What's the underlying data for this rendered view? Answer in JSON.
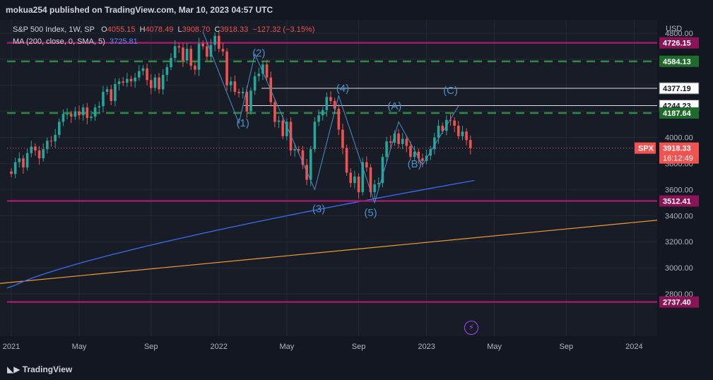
{
  "header": {
    "published": "mokua254 published on TradingView.com, Mar 10, 2023 04:57 UTC"
  },
  "legend": {
    "symbol": "S&P 500 Index, 1W, SP",
    "o_label": "O",
    "o": "4055.15",
    "h_label": "H",
    "h": "4078.49",
    "l_label": "L",
    "l": "3908.70",
    "c_label": "C",
    "c": "3918.33",
    "chg": "−127.32 (−3.15%)",
    "ma_label": "MA (200, close, 0, SMA, 5)",
    "ma_value": "3725.81"
  },
  "footer": {
    "brand": "TradingView"
  },
  "chart_data": {
    "type": "candlestick",
    "currency": "USD",
    "ylim": [
      2700,
      4880
    ],
    "y_ticks": [
      2800,
      3000,
      3200,
      3400,
      3600,
      3800,
      4000,
      4200,
      4400,
      4600,
      4800
    ],
    "y_tick_labels": [
      "2800.00",
      "3000.00",
      "3200.00",
      "3400.00",
      "3600.00",
      "3800.00",
      "4000.00",
      "4200.00",
      "4400.00",
      "4600.00",
      "4800.00"
    ],
    "x_labels": [
      "2021",
      "May",
      "Sep",
      "2022",
      "May",
      "Sep",
      "2023",
      "May",
      "Sep",
      "2024"
    ],
    "x_label_weeks": [
      0,
      17,
      35,
      52,
      69,
      87,
      104,
      121,
      139,
      156
    ],
    "closes": [
      3720,
      3810,
      3840,
      3770,
      3880,
      3930,
      3900,
      3840,
      3910,
      3975,
      3970,
      4020,
      4120,
      4180,
      4180,
      4160,
      4200,
      4170,
      4230,
      4150,
      4160,
      4230,
      4240,
      4350,
      4370,
      4280,
      4410,
      4430,
      4420,
      4450,
      4430,
      4460,
      4510,
      4530,
      4440,
      4380,
      4460,
      4370,
      4480,
      4540,
      4610,
      4700,
      4690,
      4590,
      4680,
      4550,
      4520,
      4720,
      4700,
      4620,
      4710,
      4780,
      4680,
      4660,
      4400,
      4430,
      4350,
      4340,
      4350,
      4200,
      4360,
      4470,
      4490,
      4560,
      4460,
      4270,
      4120,
      4130,
      4010,
      4120,
      3900,
      3910,
      3900,
      3790,
      3675,
      3910,
      4120,
      4170,
      4210,
      4310,
      4280,
      4220,
      4060,
      3920,
      3730,
      3650,
      3700,
      3580,
      3810,
      3770,
      3580,
      3640,
      3650,
      3850,
      3970,
      3960,
      4030,
      3950,
      3990,
      3935,
      3850,
      3890,
      3840,
      3820,
      3860,
      3910,
      4000,
      4090,
      4050,
      4135,
      4130,
      4090,
      4010,
      4045,
      3980,
      3918
    ],
    "price_tags": [
      {
        "value": "4726.15",
        "style": "magenta"
      },
      {
        "value": "4584.13",
        "style": "green"
      },
      {
        "value": "4377.19",
        "style": "white"
      },
      {
        "value": "4244.23",
        "style": "white"
      },
      {
        "value": "4187.64",
        "style": "green"
      },
      {
        "value": "3918.33",
        "style": "red",
        "symbol": "SPX",
        "countdown": "16:12:49"
      },
      {
        "value": "3512.41",
        "style": "magenta"
      },
      {
        "value": "2737.40",
        "style": "magenta"
      }
    ],
    "horizontal_levels": {
      "magenta": [
        4726.15,
        3512.41,
        2737.4
      ],
      "green_dashed": [
        4584.13,
        4187.64
      ],
      "white": [
        4377.19,
        4244.23
      ]
    },
    "wave_labels": [
      {
        "text": "(1)",
        "week": 58,
        "price": 4085
      },
      {
        "text": "(2)",
        "week": 62,
        "price": 4620
      },
      {
        "text": "(3)",
        "week": 77,
        "price": 3425
      },
      {
        "text": "(4)",
        "week": 83,
        "price": 4350
      },
      {
        "text": "(5)",
        "week": 90,
        "price": 3395
      },
      {
        "text": "(A)",
        "week": 96,
        "price": 4215
      },
      {
        "text": "(B)",
        "week": 101,
        "price": 3770
      },
      {
        "text": "(C)",
        "week": 110,
        "price": 4335
      }
    ],
    "wave_path": [
      {
        "week": 48,
        "price": 4810
      },
      {
        "week": 57,
        "price": 4110
      },
      {
        "week": 61,
        "price": 4640
      },
      {
        "week": 76,
        "price": 3600
      },
      {
        "week": 82,
        "price": 4320
      },
      {
        "week": 91,
        "price": 3500
      },
      {
        "week": 97,
        "price": 4120
      },
      {
        "week": 103,
        "price": 3790
      },
      {
        "week": 112,
        "price": 4240
      }
    ]
  }
}
